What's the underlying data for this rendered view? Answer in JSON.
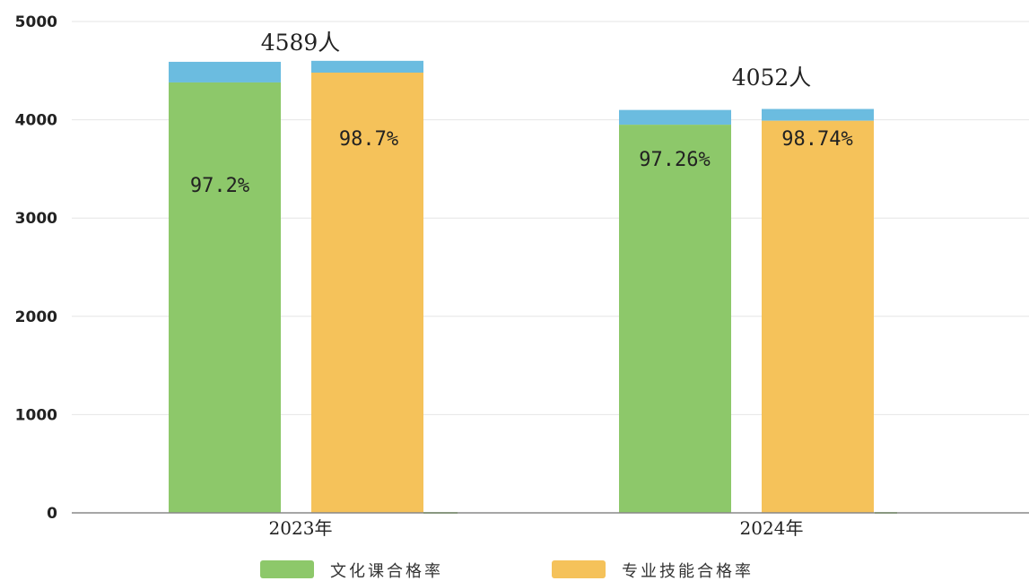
{
  "chart_data": {
    "type": "bar",
    "stacked": true,
    "categories": [
      "2023年",
      "2024年"
    ],
    "ylim": [
      0,
      5000
    ],
    "yticks": [
      "0",
      "1000",
      "2000",
      "3000",
      "4000",
      "5000"
    ],
    "grid": true,
    "legend_position": "bottom",
    "totals": [
      {
        "value": 4589,
        "label": "4589人"
      },
      {
        "value": 4052,
        "label": "4052人"
      }
    ],
    "series": [
      {
        "name": "文化课合格率",
        "color": "#8DC86A",
        "top_color": "#6BBCE0",
        "totals": [
          4590,
          4100
        ],
        "passed": [
          4380,
          3950
        ],
        "rate_labels": [
          "97.2%",
          "97.26%"
        ]
      },
      {
        "name": "专业技能合格率",
        "color": "#F5C25A",
        "top_color": "#6BBCE0",
        "totals": [
          4600,
          4110
        ],
        "passed": [
          4480,
          3990
        ],
        "rate_labels": [
          "98.7%",
          "98.74%"
        ]
      }
    ]
  }
}
